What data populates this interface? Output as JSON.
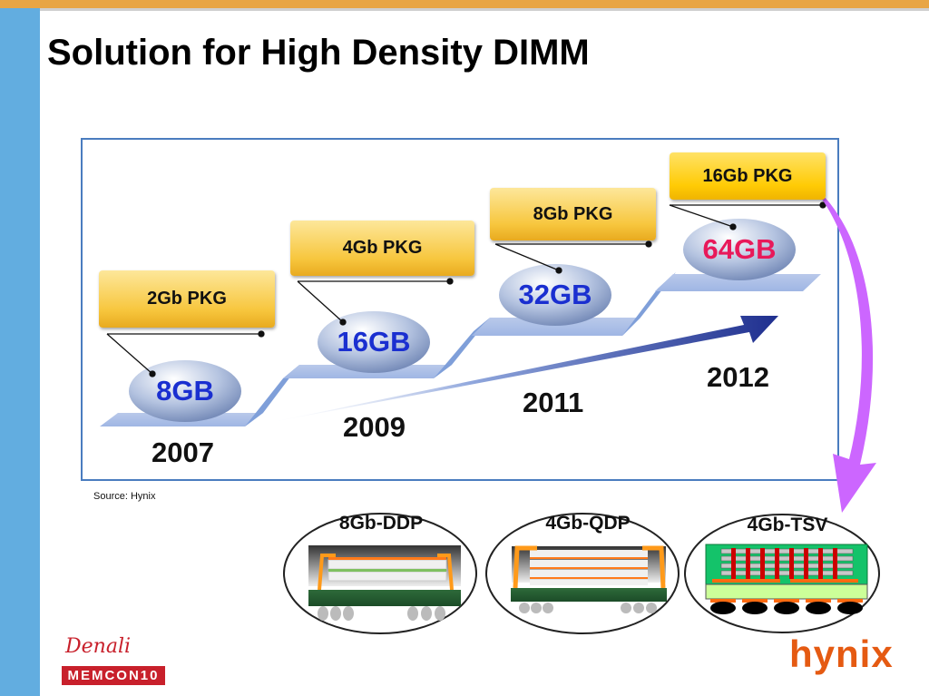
{
  "slide": {
    "title": "Solution for High Density DIMM",
    "source": "Source:  Hynix"
  },
  "timeline": {
    "steps": [
      {
        "year": "2007",
        "capacity": "8GB",
        "package": "2Gb PKG",
        "capacity_color": "#1a2fd0"
      },
      {
        "year": "2009",
        "capacity": "16GB",
        "package": "4Gb PKG",
        "capacity_color": "#1a2fd0"
      },
      {
        "year": "2011",
        "capacity": "32GB",
        "package": "8Gb PKG",
        "capacity_color": "#1a2fd0"
      },
      {
        "year": "2012",
        "capacity": "64GB",
        "package": "16Gb PKG",
        "capacity_color": "#e8195a"
      }
    ]
  },
  "packages": [
    {
      "label": "8Gb-DDP"
    },
    {
      "label": "4Gb-QDP"
    },
    {
      "label": "4Gb-TSV"
    }
  ],
  "logos": {
    "denali": "Denali",
    "memcon": "MEMCON10",
    "hynix": "hynix"
  },
  "colors": {
    "top_bar": "#e8a544",
    "sidebar": "#62ade0",
    "frame": "#4a7cbf",
    "arrow_curve": "#cc66ff"
  }
}
